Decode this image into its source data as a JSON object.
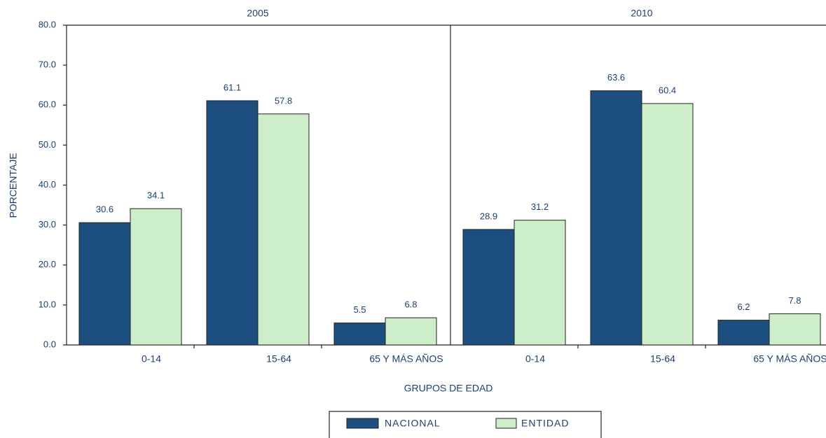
{
  "chart_data": {
    "type": "bar",
    "ylabel": "PORCENTAJE",
    "xlabel": "GRUPOS DE EDAD",
    "panels": [
      "2005",
      "2010"
    ],
    "categories": [
      "0-14",
      "15-64",
      "65 Y MÁS AÑOS",
      "0-14",
      "15-64",
      "65 Y MÁS AÑOS"
    ],
    "series": [
      {
        "name": "NACIONAL",
        "color": "#1c4f80",
        "values": [
          30.6,
          61.1,
          5.5,
          28.9,
          63.6,
          6.2
        ]
      },
      {
        "name": "ENTIDAD",
        "color": "#ccefc9",
        "values": [
          34.1,
          57.8,
          6.8,
          31.2,
          60.4,
          7.8
        ]
      }
    ],
    "ylim": [
      0,
      80
    ],
    "yticks": [
      {
        "value": 0,
        "label": "0.0"
      },
      {
        "value": 10,
        "label": "10.0"
      },
      {
        "value": 20,
        "label": "20.0"
      },
      {
        "value": 30,
        "label": "30.0"
      },
      {
        "value": 40,
        "label": "40.0"
      },
      {
        "value": 50,
        "label": "50.0"
      },
      {
        "value": 60,
        "label": "60.0"
      },
      {
        "value": 70,
        "label": "70.0"
      },
      {
        "value": 80,
        "label": "80.0"
      }
    ],
    "grid": false
  }
}
